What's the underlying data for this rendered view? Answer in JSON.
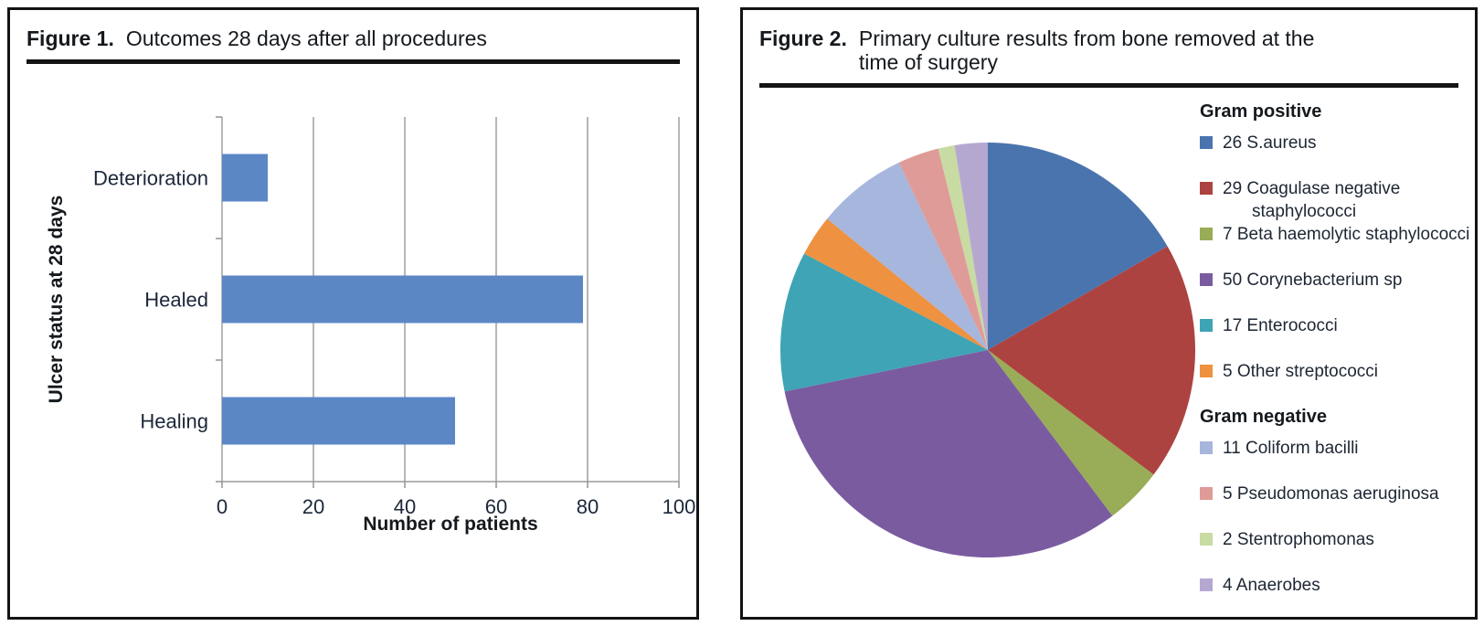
{
  "figure1": {
    "label": "Figure 1.",
    "title": "Outcomes 28 days after all procedures"
  },
  "figure2": {
    "label": "Figure 2.",
    "title_line1": "Primary culture results from bone removed at the",
    "title_line2": "time of surgery"
  },
  "chart_data": [
    {
      "type": "bar",
      "orientation": "horizontal",
      "title": "Outcomes 28 days after all procedures",
      "categories": [
        "Deterioration",
        "Healed",
        "Healing"
      ],
      "values": [
        10,
        79,
        51
      ],
      "xlabel": "Number of patients",
      "ylabel": "Ulcer status at 28 days",
      "xlim": [
        0,
        100
      ],
      "xticks": [
        0,
        20,
        40,
        60,
        80,
        100
      ],
      "bar_color": "#5b87c5",
      "grid": true,
      "grid_color": "#a5a5a5",
      "axis_color": "#9a9a9a"
    },
    {
      "type": "pie",
      "title": "Primary culture results from bone removed at the time of surgery",
      "start_angle_deg": 0,
      "direction": "clockwise",
      "total": 156,
      "groups": [
        {
          "header": "Gram positive",
          "slices": [
            {
              "name": "s-aureus",
              "label": "26 S.aureus",
              "value": 26,
              "color": "#4a74ae"
            },
            {
              "name": "coagulase-negative-staphylococci",
              "label": "29 Coagulase negative staphylococci",
              "value": 29,
              "color": "#ad4340"
            },
            {
              "name": "beta-haemolytic-staphylococci",
              "label": "7 Beta haemolytic staphylococci",
              "value": 7,
              "color": "#99ac57"
            },
            {
              "name": "corynebacterium-sp",
              "label": "50 Corynebacterium sp",
              "value": 50,
              "color": "#7a5ba0"
            },
            {
              "name": "enterococci",
              "label": "17 Enterococci",
              "value": 17,
              "color": "#3fa4b5"
            },
            {
              "name": "other-streptococci",
              "label": "5 Other streptococci",
              "value": 5,
              "color": "#ee9140"
            }
          ]
        },
        {
          "header": "Gram negative",
          "slices": [
            {
              "name": "coliform-bacilli",
              "label": "11 Coliform bacilli",
              "value": 11,
              "color": "#a6b6dd"
            },
            {
              "name": "pseudomonas-aeruginosa",
              "label": "5 Pseudomonas aeruginosa",
              "value": 5,
              "color": "#df9b97"
            },
            {
              "name": "stentrophomonas",
              "label": "2 Stentrophomonas",
              "value": 2,
              "color": "#c8dba2"
            },
            {
              "name": "anaerobes",
              "label": "4 Anaerobes",
              "value": 4,
              "color": "#b5a8d0"
            }
          ]
        }
      ]
    }
  ]
}
